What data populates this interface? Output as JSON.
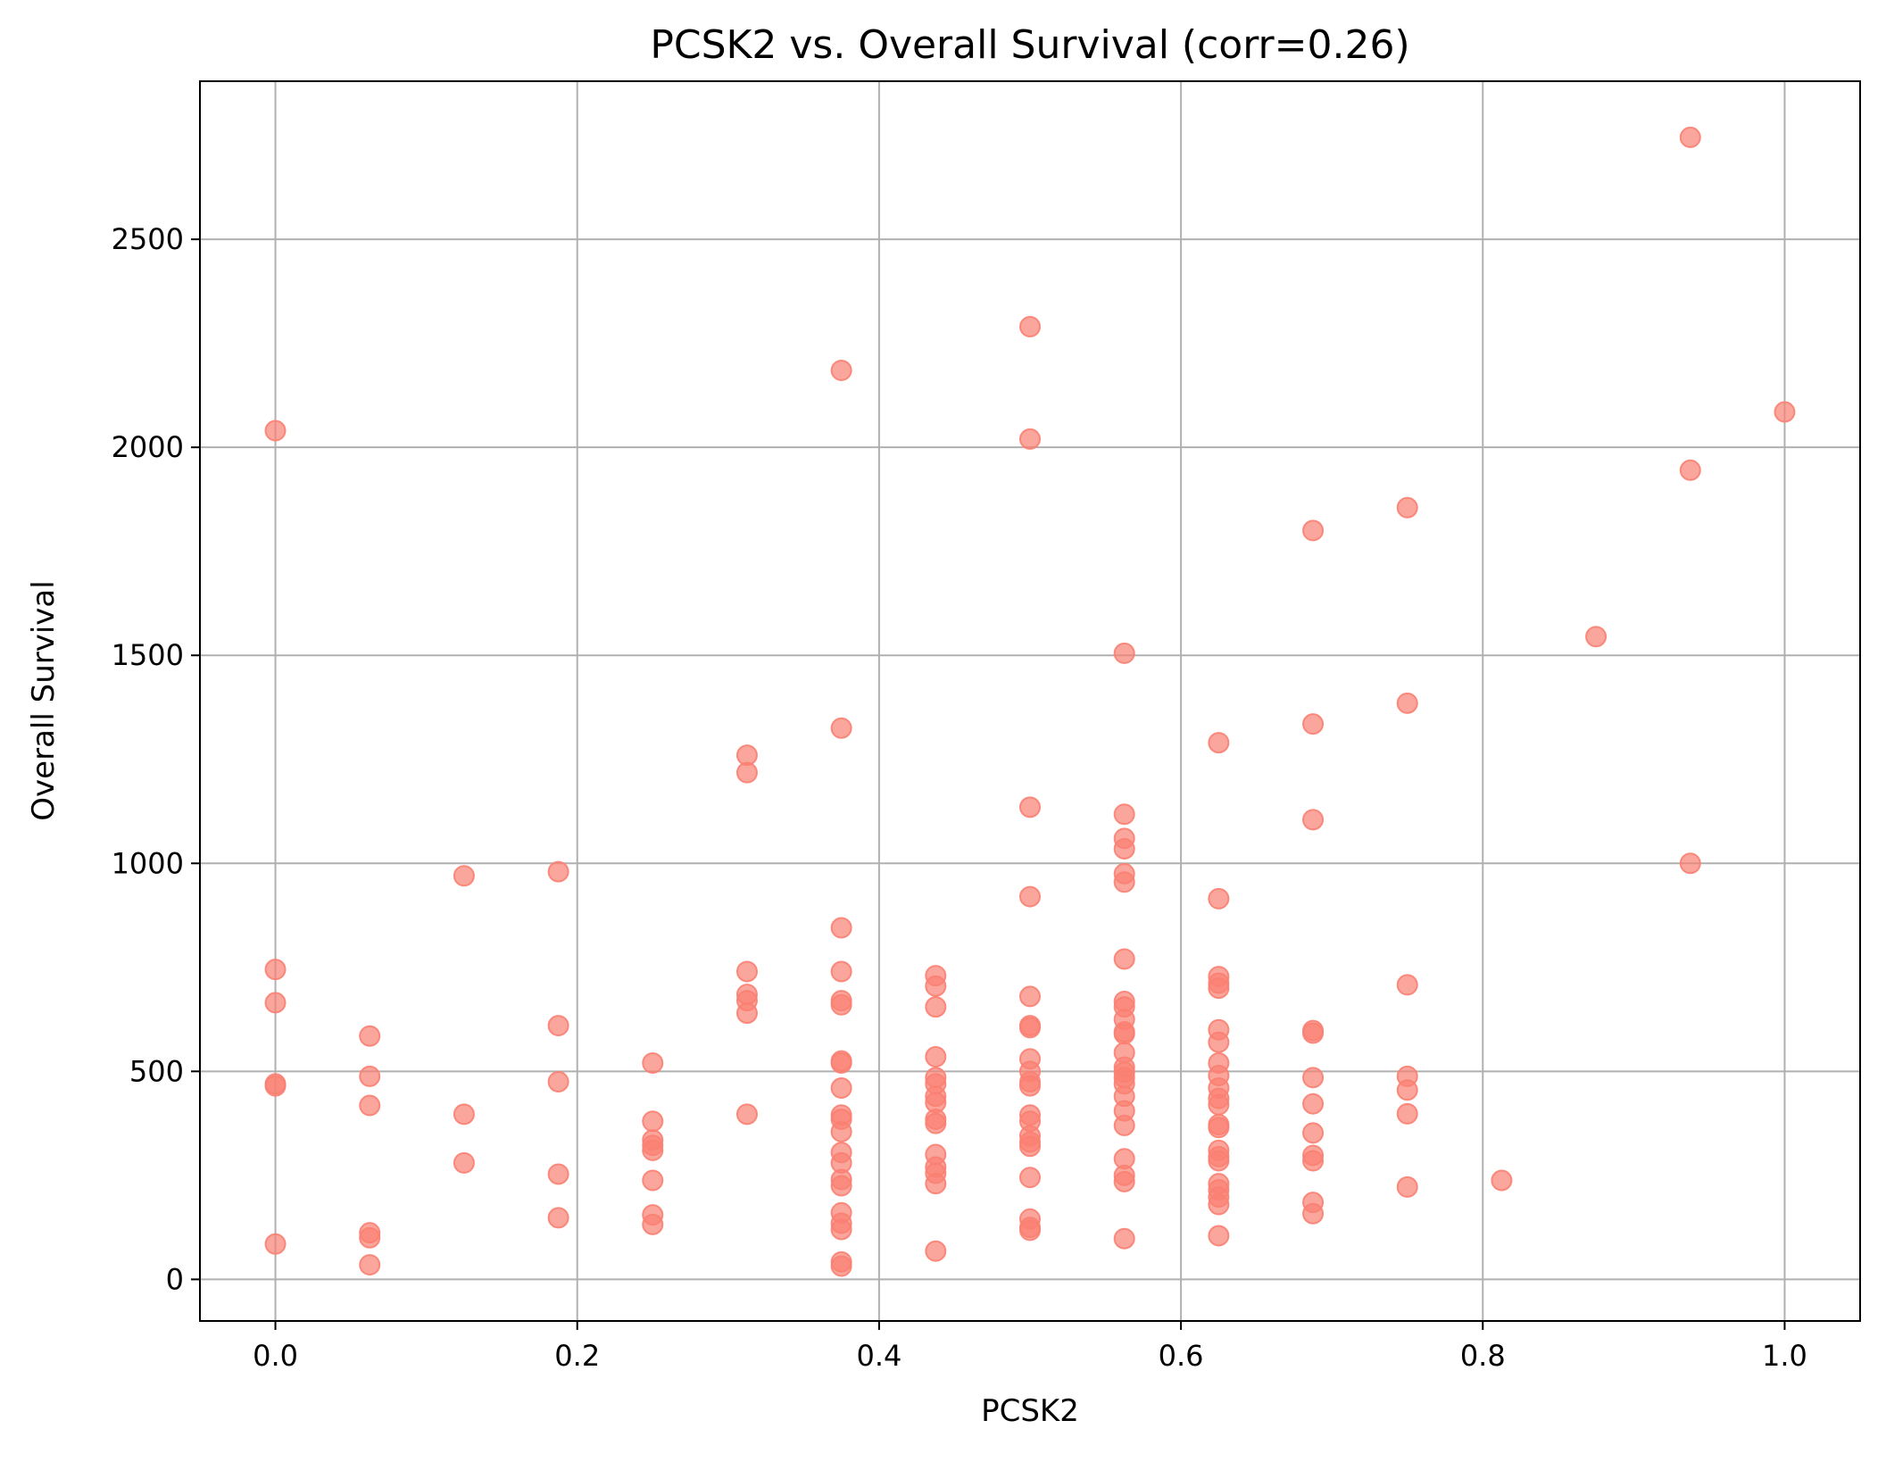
{
  "chart_data": {
    "type": "scatter",
    "title": "PCSK2 vs. Overall Survival (corr=0.26)",
    "xlabel": "PCSK2",
    "ylabel": "Overall Survival",
    "xlim": [
      -0.05,
      1.05
    ],
    "ylim": [
      -100,
      2880
    ],
    "xticks": [
      0.0,
      0.2,
      0.4,
      0.6,
      0.8,
      1.0
    ],
    "xtick_labels": [
      "0.0",
      "0.2",
      "0.4",
      "0.6",
      "0.8",
      "1.0"
    ],
    "yticks": [
      0,
      500,
      1000,
      1500,
      2000,
      2500
    ],
    "ytick_labels": [
      "0",
      "500",
      "1000",
      "1500",
      "2000",
      "2500"
    ],
    "grid": true,
    "color": "#fa8072",
    "points": [
      {
        "x": 0.0,
        "y": 2040
      },
      {
        "x": 0.0,
        "y": 745
      },
      {
        "x": 0.0,
        "y": 665
      },
      {
        "x": 0.0,
        "y": 470
      },
      {
        "x": 0.0,
        "y": 465
      },
      {
        "x": 0.0,
        "y": 85
      },
      {
        "x": 0.0625,
        "y": 585
      },
      {
        "x": 0.0625,
        "y": 488
      },
      {
        "x": 0.0625,
        "y": 418
      },
      {
        "x": 0.0625,
        "y": 112
      },
      {
        "x": 0.0625,
        "y": 100
      },
      {
        "x": 0.0625,
        "y": 35
      },
      {
        "x": 0.125,
        "y": 970
      },
      {
        "x": 0.125,
        "y": 397
      },
      {
        "x": 0.125,
        "y": 280
      },
      {
        "x": 0.1875,
        "y": 980
      },
      {
        "x": 0.1875,
        "y": 610
      },
      {
        "x": 0.1875,
        "y": 475
      },
      {
        "x": 0.1875,
        "y": 253
      },
      {
        "x": 0.1875,
        "y": 148
      },
      {
        "x": 0.25,
        "y": 520
      },
      {
        "x": 0.25,
        "y": 380
      },
      {
        "x": 0.25,
        "y": 335
      },
      {
        "x": 0.25,
        "y": 322
      },
      {
        "x": 0.25,
        "y": 310
      },
      {
        "x": 0.25,
        "y": 238
      },
      {
        "x": 0.25,
        "y": 155
      },
      {
        "x": 0.25,
        "y": 132
      },
      {
        "x": 0.3125,
        "y": 1260
      },
      {
        "x": 0.3125,
        "y": 1218
      },
      {
        "x": 0.3125,
        "y": 740
      },
      {
        "x": 0.3125,
        "y": 685
      },
      {
        "x": 0.3125,
        "y": 670
      },
      {
        "x": 0.3125,
        "y": 640
      },
      {
        "x": 0.3125,
        "y": 397
      },
      {
        "x": 0.375,
        "y": 2185
      },
      {
        "x": 0.375,
        "y": 1325
      },
      {
        "x": 0.375,
        "y": 845
      },
      {
        "x": 0.375,
        "y": 740
      },
      {
        "x": 0.375,
        "y": 670
      },
      {
        "x": 0.375,
        "y": 660
      },
      {
        "x": 0.375,
        "y": 525
      },
      {
        "x": 0.375,
        "y": 520
      },
      {
        "x": 0.375,
        "y": 460
      },
      {
        "x": 0.375,
        "y": 395
      },
      {
        "x": 0.375,
        "y": 385
      },
      {
        "x": 0.375,
        "y": 355
      },
      {
        "x": 0.375,
        "y": 305
      },
      {
        "x": 0.375,
        "y": 280
      },
      {
        "x": 0.375,
        "y": 240
      },
      {
        "x": 0.375,
        "y": 225
      },
      {
        "x": 0.375,
        "y": 160
      },
      {
        "x": 0.375,
        "y": 135
      },
      {
        "x": 0.375,
        "y": 120
      },
      {
        "x": 0.375,
        "y": 42
      },
      {
        "x": 0.375,
        "y": 32
      },
      {
        "x": 0.4375,
        "y": 730
      },
      {
        "x": 0.4375,
        "y": 705
      },
      {
        "x": 0.4375,
        "y": 655
      },
      {
        "x": 0.4375,
        "y": 535
      },
      {
        "x": 0.4375,
        "y": 485
      },
      {
        "x": 0.4375,
        "y": 470
      },
      {
        "x": 0.4375,
        "y": 440
      },
      {
        "x": 0.4375,
        "y": 425
      },
      {
        "x": 0.4375,
        "y": 385
      },
      {
        "x": 0.4375,
        "y": 375
      },
      {
        "x": 0.4375,
        "y": 300
      },
      {
        "x": 0.4375,
        "y": 270
      },
      {
        "x": 0.4375,
        "y": 255
      },
      {
        "x": 0.4375,
        "y": 230
      },
      {
        "x": 0.4375,
        "y": 68
      },
      {
        "x": 0.5,
        "y": 2290
      },
      {
        "x": 0.5,
        "y": 2020
      },
      {
        "x": 0.5,
        "y": 1135
      },
      {
        "x": 0.5,
        "y": 920
      },
      {
        "x": 0.5,
        "y": 680
      },
      {
        "x": 0.5,
        "y": 610
      },
      {
        "x": 0.5,
        "y": 605
      },
      {
        "x": 0.5,
        "y": 530
      },
      {
        "x": 0.5,
        "y": 500
      },
      {
        "x": 0.5,
        "y": 475
      },
      {
        "x": 0.5,
        "y": 465
      },
      {
        "x": 0.5,
        "y": 395
      },
      {
        "x": 0.5,
        "y": 380
      },
      {
        "x": 0.5,
        "y": 345
      },
      {
        "x": 0.5,
        "y": 330
      },
      {
        "x": 0.5,
        "y": 320
      },
      {
        "x": 0.5,
        "y": 245
      },
      {
        "x": 0.5,
        "y": 145
      },
      {
        "x": 0.5,
        "y": 125
      },
      {
        "x": 0.5,
        "y": 118
      },
      {
        "x": 0.5625,
        "y": 1505
      },
      {
        "x": 0.5625,
        "y": 1118
      },
      {
        "x": 0.5625,
        "y": 1060
      },
      {
        "x": 0.5625,
        "y": 1035
      },
      {
        "x": 0.5625,
        "y": 975
      },
      {
        "x": 0.5625,
        "y": 955
      },
      {
        "x": 0.5625,
        "y": 770
      },
      {
        "x": 0.5625,
        "y": 668
      },
      {
        "x": 0.5625,
        "y": 655
      },
      {
        "x": 0.5625,
        "y": 625
      },
      {
        "x": 0.5625,
        "y": 595
      },
      {
        "x": 0.5625,
        "y": 590
      },
      {
        "x": 0.5625,
        "y": 545
      },
      {
        "x": 0.5625,
        "y": 510
      },
      {
        "x": 0.5625,
        "y": 498
      },
      {
        "x": 0.5625,
        "y": 485
      },
      {
        "x": 0.5625,
        "y": 470
      },
      {
        "x": 0.5625,
        "y": 440
      },
      {
        "x": 0.5625,
        "y": 405
      },
      {
        "x": 0.5625,
        "y": 370
      },
      {
        "x": 0.5625,
        "y": 290
      },
      {
        "x": 0.5625,
        "y": 250
      },
      {
        "x": 0.5625,
        "y": 235
      },
      {
        "x": 0.5625,
        "y": 98
      },
      {
        "x": 0.625,
        "y": 1290
      },
      {
        "x": 0.625,
        "y": 915
      },
      {
        "x": 0.625,
        "y": 728
      },
      {
        "x": 0.625,
        "y": 712
      },
      {
        "x": 0.625,
        "y": 700
      },
      {
        "x": 0.625,
        "y": 600
      },
      {
        "x": 0.625,
        "y": 570
      },
      {
        "x": 0.625,
        "y": 520
      },
      {
        "x": 0.625,
        "y": 490
      },
      {
        "x": 0.625,
        "y": 460
      },
      {
        "x": 0.625,
        "y": 435
      },
      {
        "x": 0.625,
        "y": 420
      },
      {
        "x": 0.625,
        "y": 372
      },
      {
        "x": 0.625,
        "y": 365
      },
      {
        "x": 0.625,
        "y": 310
      },
      {
        "x": 0.625,
        "y": 295
      },
      {
        "x": 0.625,
        "y": 285
      },
      {
        "x": 0.625,
        "y": 230
      },
      {
        "x": 0.625,
        "y": 215
      },
      {
        "x": 0.625,
        "y": 198
      },
      {
        "x": 0.625,
        "y": 180
      },
      {
        "x": 0.625,
        "y": 105
      },
      {
        "x": 0.6875,
        "y": 1800
      },
      {
        "x": 0.6875,
        "y": 1335
      },
      {
        "x": 0.6875,
        "y": 1105
      },
      {
        "x": 0.6875,
        "y": 598
      },
      {
        "x": 0.6875,
        "y": 592
      },
      {
        "x": 0.6875,
        "y": 485
      },
      {
        "x": 0.6875,
        "y": 422
      },
      {
        "x": 0.6875,
        "y": 352
      },
      {
        "x": 0.6875,
        "y": 298
      },
      {
        "x": 0.6875,
        "y": 285
      },
      {
        "x": 0.6875,
        "y": 185
      },
      {
        "x": 0.6875,
        "y": 158
      },
      {
        "x": 0.75,
        "y": 1855
      },
      {
        "x": 0.75,
        "y": 1385
      },
      {
        "x": 0.75,
        "y": 708
      },
      {
        "x": 0.75,
        "y": 488
      },
      {
        "x": 0.75,
        "y": 455
      },
      {
        "x": 0.75,
        "y": 398
      },
      {
        "x": 0.75,
        "y": 222
      },
      {
        "x": 0.8125,
        "y": 238
      },
      {
        "x": 0.875,
        "y": 1545
      },
      {
        "x": 0.9375,
        "y": 2745
      },
      {
        "x": 0.9375,
        "y": 1945
      },
      {
        "x": 0.9375,
        "y": 1000
      },
      {
        "x": 1.0,
        "y": 2085
      }
    ]
  }
}
